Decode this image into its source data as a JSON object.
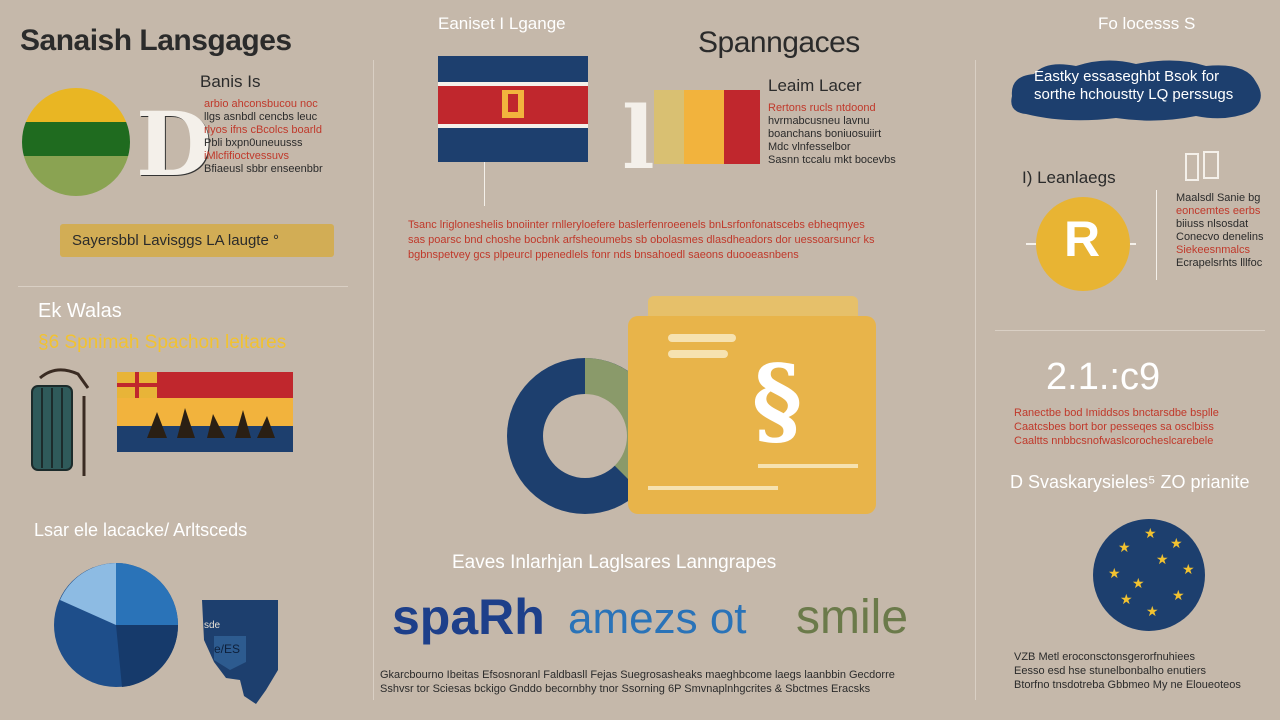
{
  "colors": {
    "background": "#c5b8aa",
    "navy": "#1d3f6e",
    "red_accent": "#c0392b",
    "yellow": "#f2b33d",
    "green": "#1f6b1f",
    "olive": "#8a9a6a"
  },
  "left": {
    "title": "Sanaish Lansgages",
    "sub_heading": "Banis Is",
    "para_lines": [
      "arbio ahconsbucou noc",
      "llgs asnbdl cencbs leuc",
      "rlyos ifns cBcolcs boarld",
      "Pbli bxpn0uneuusss",
      "iMlcfifioctvessuvs",
      "Bfiaeusl sbbr enseenbbr"
    ],
    "yellow_chip": "Sayersbbl Lavisggs LA laugte °",
    "section2_heading": "Ek Walas",
    "section2_subheading": "§6 Spnimah  Spachon leltares",
    "section3_heading": "Lsar ele lacacke/ Arltsceds",
    "map_labels": [
      "sde",
      "e/ES"
    ]
  },
  "middle": {
    "label_top": "Eaniset I Lgange",
    "title": "Spanngaces",
    "learn_label": "Leaim Lacer",
    "learn_lines": [
      "Rertons rucls ntdoond",
      "hvrmabcusneu lavnu",
      "boanchans boniuosuiirt",
      "Mdc vlnfesselbor",
      "Sasnn tccalu mkt bocevbs"
    ],
    "red_paragraph": [
      "Tsanc lrigloneshelis bnoiinter rnlleryloefere baslerfenroeenels bnLsrfonfonatscebs ebheqmyes",
      "sas poarsc bnd choshe bocbnk arfsheoumebs sb obolasmes dlasdheadors dor uessoarsuncr ks",
      "bgbnspetvey gcs plpeurcl ppenedlels fonr nds   bnsahoedl    saeons duooeasnbens"
    ],
    "folder_symbol": "§",
    "bottom_heading": "Eaves Inlarhjan Laglsares Lanngrapes",
    "big_words": [
      "spaRh",
      "amezs ot",
      "smile"
    ],
    "footer_lines": [
      "Gkarcbourno Ibeitas Efsosnoranl Faldbasll Fejas Suegrosasheaks maeghbcome laegs laanbbin Gecdorre",
      "Sshvsr tor Sciesas bckigo  Gnddo becornbhy tnor Ssorning 6P Smvnaplnhgcrites & Sbctmes Eracsks"
    ]
  },
  "right": {
    "top_label": "Fo locesss S",
    "cloud_text": [
      "Eastky essaseghbt Bsok for",
      "sorthe hchoustty LQ perssugs"
    ],
    "learn_heading": "I) Leanlaegs",
    "coin_symbol": "R",
    "para1_lines": [
      "Maalsdl Sanie bg",
      "eoncemtes eerbs",
      "biiuss nlsosdat",
      "Conecvo denelins",
      "Siekeesnmalcs",
      "Ecrapelsrhts lllfoc"
    ],
    "year": "2.1.:c9",
    "para2_lines": [
      "Ranectbe bod Imiddsos bnctarsdbe bsplle",
      "Caatcsbes bort bor pesseqes sa osclbiss",
      "Caaltts nnbbcsnofwaslcorocheslcarebele"
    ],
    "stat_heading": "D Svaskarysieles⁵ ZO prianite",
    "footer_lines": [
      "VZB Metl  eroconsctonsgerorfnuhiees",
      "Eesso esd hse stunelbonbalho enutiers",
      "Btorfno tnsdotreba Gbbmeo My ne Eloueoteos"
    ]
  }
}
